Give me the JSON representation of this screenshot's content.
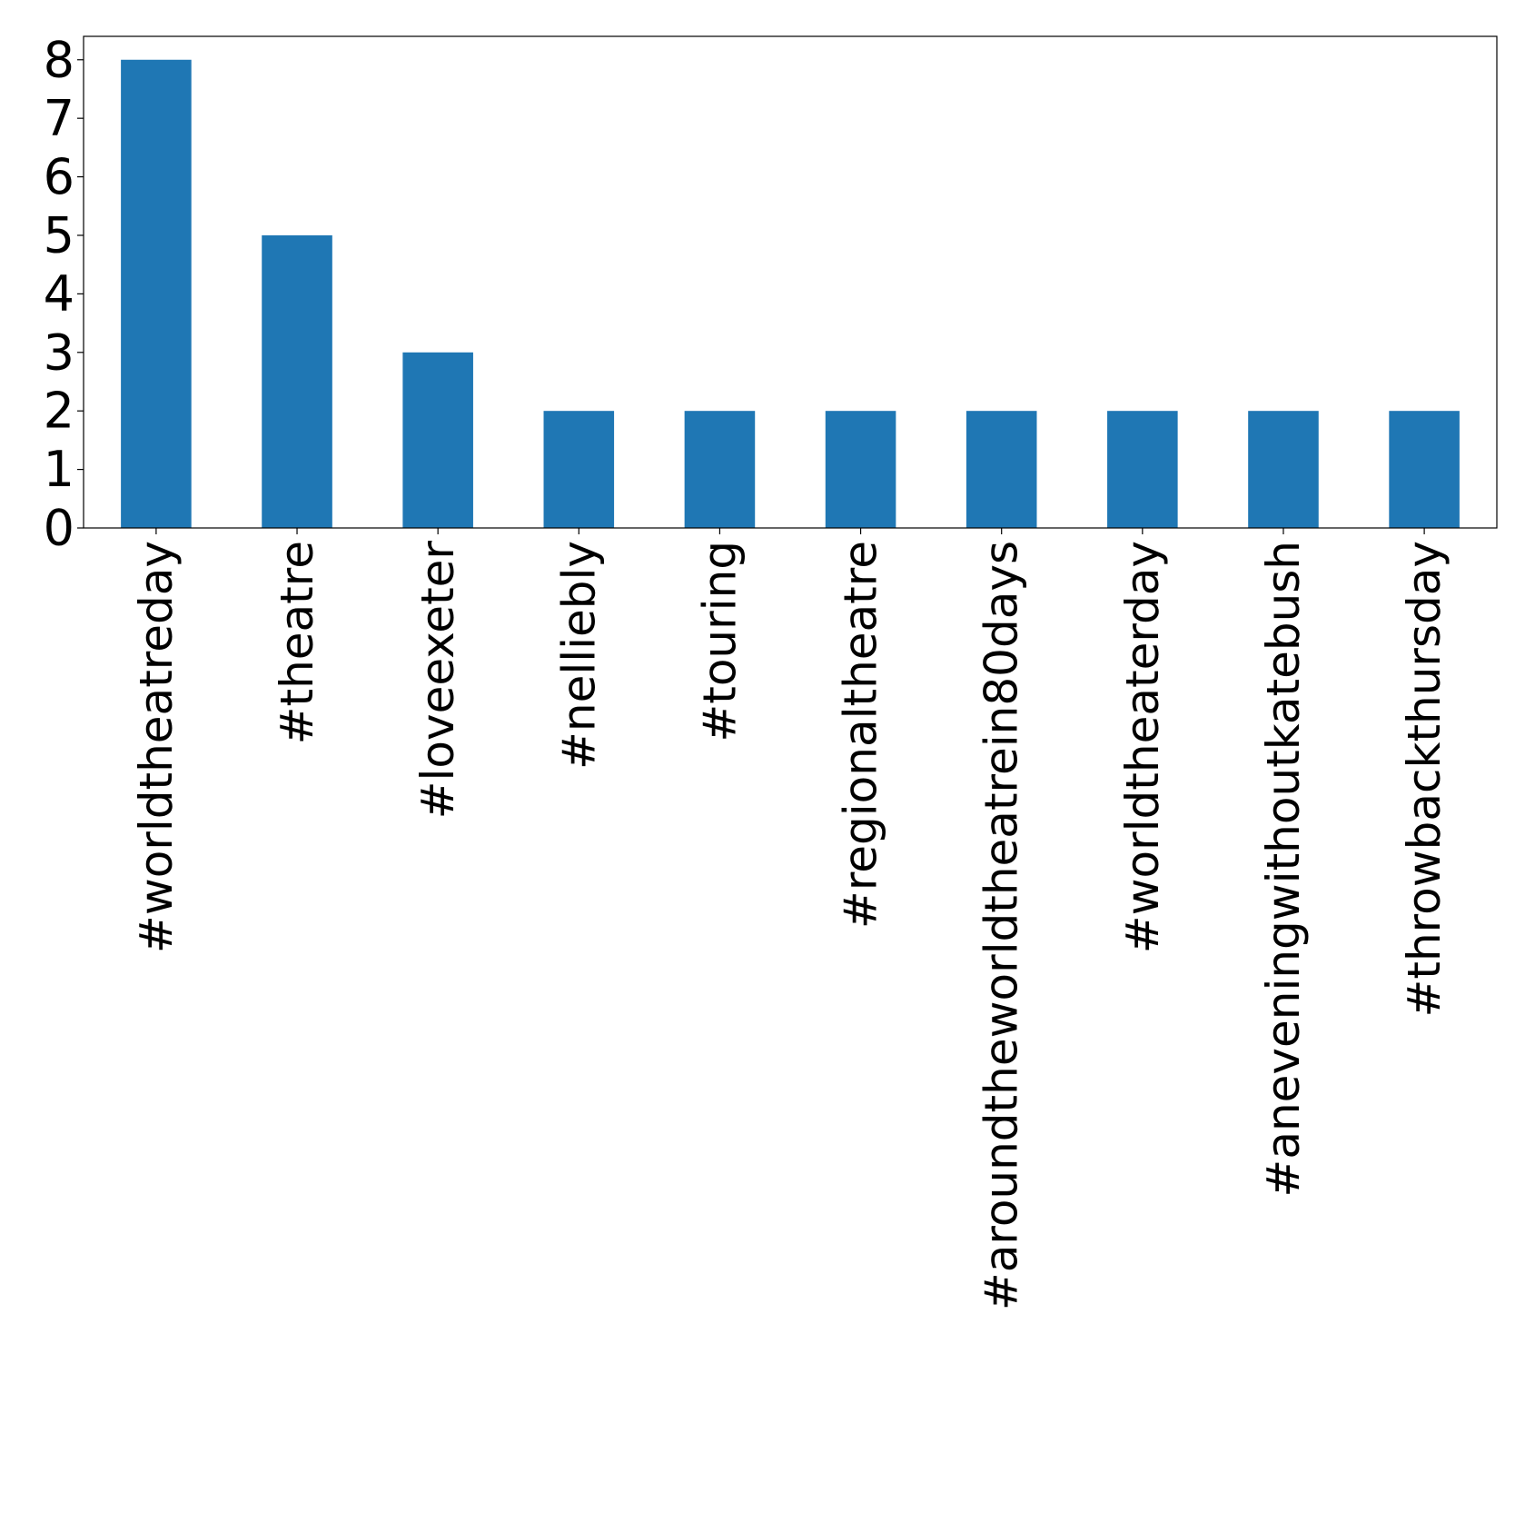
{
  "chart_data": {
    "type": "bar",
    "categories": [
      "#worldtheatreday",
      "#theatre",
      "#loveexeter",
      "#nelliebly",
      "#touring",
      "#regionaltheatre",
      "#aroundtheworldtheatrein80days",
      "#worldtheaterday",
      "#aneveningwithoutkatebush",
      "#throwbackthursday"
    ],
    "values": [
      8,
      5,
      3,
      2,
      2,
      2,
      2,
      2,
      2,
      2
    ],
    "title": "",
    "xlabel": "",
    "ylabel": "",
    "ylim": [
      0,
      8.4
    ],
    "yticks": [
      0,
      1,
      2,
      3,
      4,
      5,
      6,
      7,
      8
    ],
    "grid": false,
    "bar_color": "#1f77b4"
  }
}
